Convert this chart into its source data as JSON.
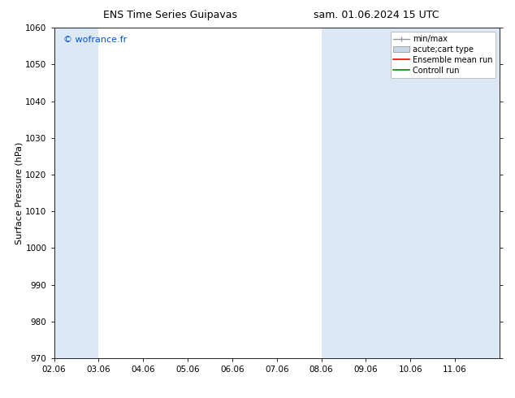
{
  "title_left": "ENS Time Series Guipavas",
  "title_right": "sam. 01.06.2024 15 UTC",
  "ylabel": "Surface Pressure (hPa)",
  "ylim": [
    970,
    1060
  ],
  "yticks": [
    970,
    980,
    990,
    1000,
    1010,
    1020,
    1030,
    1040,
    1050,
    1060
  ],
  "xtick_labels": [
    "02.06",
    "03.06",
    "04.06",
    "05.06",
    "06.06",
    "07.06",
    "08.06",
    "09.06",
    "10.06",
    "11.06"
  ],
  "watermark": "© wofrance.fr",
  "watermark_color": "#0055cc",
  "shaded_bands": [
    {
      "xmin": 0.0,
      "xmax": 1.0,
      "color": "#dce9f5"
    },
    {
      "xmin": 6.0,
      "xmax": 8.0,
      "color": "#dce9f5"
    },
    {
      "xmin": 8.0,
      "xmax": 9.0,
      "color": "#dce9f5"
    },
    {
      "xmin": 9.0,
      "xmax": 10.0,
      "color": "#dce9f5"
    }
  ],
  "legend_entries": [
    {
      "label": "min/max",
      "type": "errorbar",
      "color": "#999999"
    },
    {
      "label": "acute;cart type",
      "type": "box",
      "color": "#c8d8e8"
    },
    {
      "label": "Ensemble mean run",
      "type": "line",
      "color": "#ff0000"
    },
    {
      "label": "Controll run",
      "type": "line",
      "color": "#008800"
    }
  ],
  "bg_color": "#ffffff",
  "plot_bg_color": "#ffffff",
  "title_fontsize": 9,
  "ylabel_fontsize": 8,
  "tick_fontsize": 7.5,
  "legend_fontsize": 7,
  "watermark_fontsize": 8
}
